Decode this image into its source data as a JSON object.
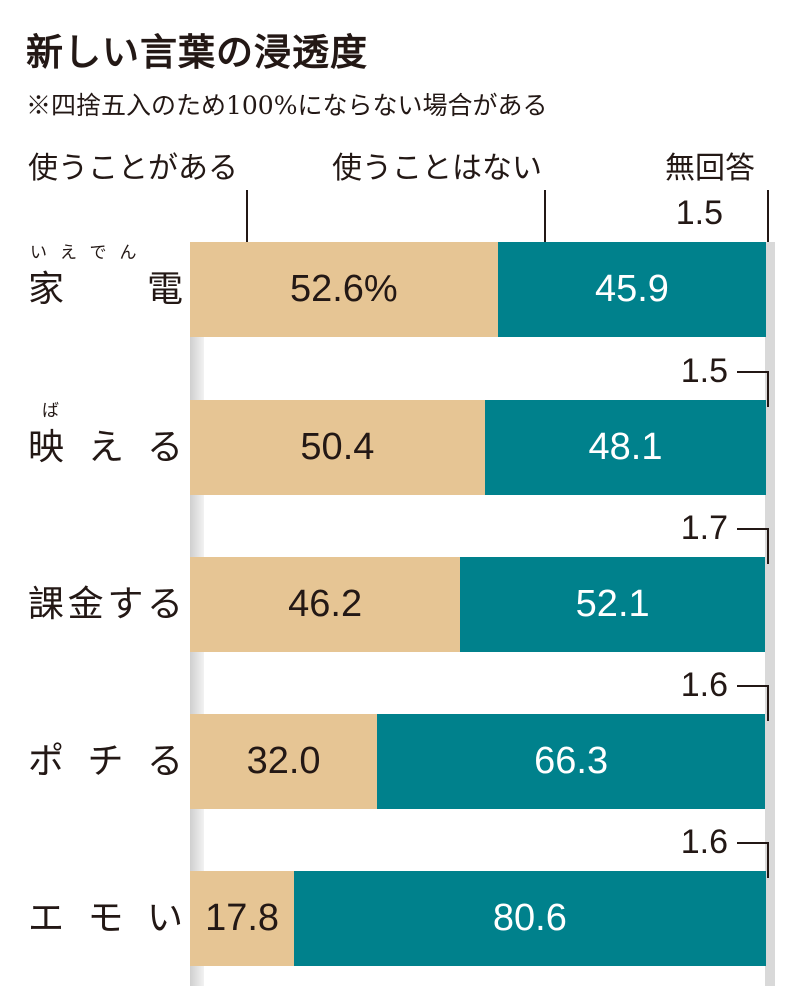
{
  "title": "新しい言葉の浸透度",
  "subtitle": "※四捨五入のため100%にならない場合がある",
  "colors": {
    "use": "#e6c594",
    "not_use": "#00818c",
    "no_answer": "#d9d9d9",
    "text": "#231815"
  },
  "chart_data": {
    "type": "bar",
    "orientation": "horizontal-stacked-100",
    "title": "新しい言葉の浸透度",
    "legend": [
      "使うことがある",
      "使うことはない",
      "無回答"
    ],
    "legend_placement": "top",
    "unit": "%",
    "categories": [
      {
        "label": "家電",
        "ruby": "いえでん"
      },
      {
        "label": "映える",
        "ruby": "ば"
      },
      {
        "label": "課金する",
        "ruby": ""
      },
      {
        "label": "ポチる",
        "ruby": ""
      },
      {
        "label": "エモい",
        "ruby": ""
      }
    ],
    "series": [
      {
        "name": "使うことがある",
        "values": [
          52.6,
          50.4,
          46.2,
          32.0,
          17.8
        ],
        "labels": [
          "52.6%",
          "50.4",
          "46.2",
          "32.0",
          "17.8"
        ]
      },
      {
        "name": "使うことはない",
        "values": [
          45.9,
          48.1,
          52.1,
          66.3,
          80.6
        ],
        "labels": [
          "45.9",
          "48.1",
          "52.1",
          "66.3",
          "80.6"
        ]
      },
      {
        "name": "無回答",
        "values": [
          1.5,
          1.5,
          1.7,
          1.6,
          1.6
        ],
        "labels": [
          "1.5",
          "1.5",
          "1.7",
          "1.6",
          "1.6"
        ]
      }
    ]
  }
}
